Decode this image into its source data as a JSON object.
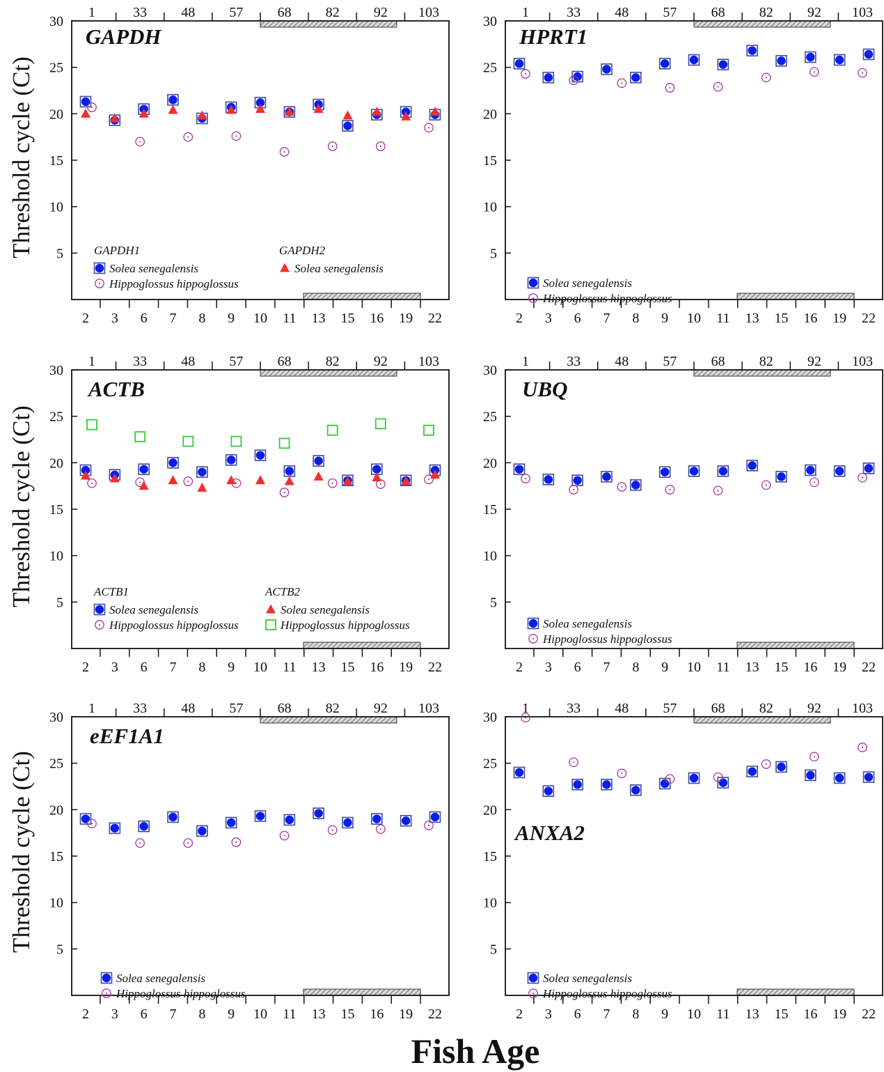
{
  "figure": {
    "xlabel": "Fish Age",
    "ylabel": "Threshold cycle (Ct)"
  },
  "colors": {
    "solea": "#0a1ee8",
    "solea_marker_box": "#3d4ba0",
    "hippoglossus": "#a8359c",
    "solea_gene2": "#f03030",
    "hippoglossus_gene2": "#33cc33"
  },
  "chart_data": [
    {
      "type": "scatter",
      "title": "GAPDH",
      "ylim": [
        0,
        30
      ],
      "yticks": [
        5,
        10,
        15,
        20,
        25,
        30
      ],
      "x_bottom": [
        "2",
        "3",
        "6",
        "7",
        "8",
        "9",
        "10",
        "11",
        "13",
        "15",
        "16",
        "19",
        "22"
      ],
      "x_top": [
        "1",
        "33",
        "48",
        "57",
        "68",
        "82",
        "92",
        "103"
      ],
      "legend_groups": [
        {
          "heading": "GAPDH1",
          "entries": [
            {
              "label": "Solea senegalensis",
              "series": 0
            },
            {
              "label": "Hippoglossus hippoglossus",
              "series": 1
            }
          ]
        },
        {
          "heading": "GAPDH2",
          "entries": [
            {
              "label": "Solea senegalensis",
              "series": 2
            }
          ]
        }
      ],
      "series": [
        {
          "marker": "filled-circle-box",
          "color_key": "solea",
          "axis": "bottom",
          "values": [
            21.3,
            19.3,
            20.5,
            21.5,
            19.5,
            20.7,
            21.2,
            20.2,
            21.0,
            18.7,
            19.9,
            20.2,
            19.9
          ]
        },
        {
          "marker": "dot-circle",
          "color_key": "hippoglossus",
          "axis": "top",
          "values": [
            20.7,
            17.0,
            17.5,
            17.6,
            15.9,
            16.5,
            16.5,
            18.5
          ]
        },
        {
          "marker": "triangle",
          "color_key": "solea_gene2",
          "axis": "bottom",
          "values": [
            20.0,
            19.5,
            20.0,
            20.4,
            19.8,
            20.4,
            20.5,
            20.2,
            20.5,
            19.8,
            20.2,
            19.7,
            20.2
          ]
        }
      ]
    },
    {
      "type": "scatter",
      "title": "HPRT1",
      "ylim": [
        0,
        30
      ],
      "yticks": [
        5,
        10,
        15,
        20,
        25,
        30
      ],
      "x_bottom": [
        "2",
        "3",
        "6",
        "7",
        "8",
        "9",
        "10",
        "11",
        "13",
        "15",
        "16",
        "19",
        "22"
      ],
      "x_top": [
        "1",
        "33",
        "48",
        "57",
        "68",
        "82",
        "92",
        "103"
      ],
      "legend_groups": [
        {
          "heading": "",
          "entries": [
            {
              "label": "Solea senegalensis",
              "series": 0
            },
            {
              "label": "Hippoglossus hippoglossus",
              "series": 1
            }
          ]
        }
      ],
      "series": [
        {
          "marker": "filled-circle-box",
          "color_key": "solea",
          "axis": "bottom",
          "values": [
            25.4,
            23.9,
            24.0,
            24.8,
            23.9,
            25.4,
            25.8,
            25.3,
            26.8,
            25.7,
            26.1,
            25.8,
            26.4
          ]
        },
        {
          "marker": "dot-circle",
          "color_key": "hippoglossus",
          "axis": "top",
          "values": [
            24.3,
            23.6,
            23.3,
            22.8,
            22.9,
            23.9,
            24.5,
            24.4
          ]
        }
      ]
    },
    {
      "type": "scatter",
      "title": "ACTB",
      "ylim": [
        0,
        30
      ],
      "yticks": [
        5,
        10,
        15,
        20,
        25,
        30
      ],
      "x_bottom": [
        "2",
        "3",
        "6",
        "7",
        "8",
        "9",
        "10",
        "11",
        "13",
        "15",
        "16",
        "19",
        "22"
      ],
      "x_top": [
        "1",
        "33",
        "48",
        "57",
        "68",
        "82",
        "92",
        "103"
      ],
      "legend_groups": [
        {
          "heading": "ACTB1",
          "entries": [
            {
              "label": "Solea senegalensis",
              "series": 0
            },
            {
              "label": "Hippoglossus hippoglossus",
              "series": 1
            }
          ]
        },
        {
          "heading": "ACTB2",
          "entries": [
            {
              "label": "Solea senegalensis",
              "series": 2
            },
            {
              "label": "Hippoglossus hippoglossus",
              "series": 3
            }
          ]
        }
      ],
      "series": [
        {
          "marker": "filled-circle-box",
          "color_key": "solea",
          "axis": "bottom",
          "values": [
            19.2,
            18.7,
            19.3,
            20.0,
            19.0,
            20.3,
            20.8,
            19.1,
            20.2,
            18.1,
            19.3,
            18.1,
            19.2
          ]
        },
        {
          "marker": "dot-circle",
          "color_key": "hippoglossus",
          "axis": "top",
          "values": [
            17.8,
            17.9,
            18.0,
            17.8,
            16.8,
            17.8,
            17.7,
            18.2
          ]
        },
        {
          "marker": "triangle",
          "color_key": "solea_gene2",
          "axis": "bottom",
          "values": [
            18.6,
            18.3,
            17.5,
            18.1,
            17.3,
            18.1,
            18.1,
            18.0,
            18.5,
            18.0,
            18.4,
            18.0,
            18.7
          ]
        },
        {
          "marker": "open-square",
          "color_key": "hippoglossus_gene2",
          "axis": "top",
          "values": [
            24.1,
            22.8,
            22.3,
            22.3,
            22.1,
            23.5,
            24.2,
            23.5
          ]
        }
      ]
    },
    {
      "type": "scatter",
      "title": "UBQ",
      "ylim": [
        0,
        30
      ],
      "yticks": [
        5,
        10,
        15,
        20,
        25,
        30
      ],
      "x_bottom": [
        "2",
        "3",
        "6",
        "7",
        "8",
        "9",
        "10",
        "11",
        "13",
        "15",
        "16",
        "19",
        "22"
      ],
      "x_top": [
        "1",
        "33",
        "48",
        "57",
        "68",
        "82",
        "92",
        "103"
      ],
      "legend_groups": [
        {
          "heading": "",
          "entries": [
            {
              "label": "Solea senegalensis",
              "series": 0
            },
            {
              "label": "Hippoglossus hippoglossus",
              "series": 1
            }
          ]
        }
      ],
      "series": [
        {
          "marker": "filled-circle-box",
          "color_key": "solea",
          "axis": "bottom",
          "values": [
            19.3,
            18.2,
            18.1,
            18.5,
            17.6,
            19.0,
            19.1,
            19.1,
            19.7,
            18.5,
            19.2,
            19.1,
            19.4
          ]
        },
        {
          "marker": "dot-circle",
          "color_key": "hippoglossus",
          "axis": "top",
          "values": [
            18.3,
            17.1,
            17.4,
            17.1,
            17.0,
            17.6,
            17.9,
            18.4
          ]
        }
      ]
    },
    {
      "type": "scatter",
      "title": "eEF1A1",
      "ylim": [
        0,
        30
      ],
      "yticks": [
        5,
        10,
        15,
        20,
        25,
        30
      ],
      "x_bottom": [
        "2",
        "3",
        "6",
        "7",
        "8",
        "9",
        "10",
        "11",
        "13",
        "15",
        "16",
        "19",
        "22"
      ],
      "x_top": [
        "1",
        "33",
        "48",
        "57",
        "68",
        "82",
        "92",
        "103"
      ],
      "legend_groups": [
        {
          "heading": "",
          "entries": [
            {
              "label": "Solea senegalensis",
              "series": 0
            },
            {
              "label": "Hippoglossus hippoglossus",
              "series": 1
            }
          ]
        }
      ],
      "series": [
        {
          "marker": "filled-circle-box",
          "color_key": "solea",
          "axis": "bottom",
          "values": [
            19.0,
            18.0,
            18.2,
            19.2,
            17.7,
            18.6,
            19.3,
            18.9,
            19.6,
            18.6,
            19.0,
            18.8,
            19.2
          ]
        },
        {
          "marker": "dot-circle",
          "color_key": "hippoglossus",
          "axis": "top",
          "values": [
            18.5,
            16.4,
            16.4,
            16.5,
            17.2,
            17.8,
            17.9,
            18.3
          ]
        }
      ]
    },
    {
      "type": "scatter",
      "title": "ANXA2",
      "ylim": [
        0,
        30
      ],
      "yticks": [
        5,
        10,
        15,
        20,
        25,
        30
      ],
      "x_bottom": [
        "2",
        "3",
        "6",
        "7",
        "8",
        "9",
        "10",
        "11",
        "13",
        "15",
        "16",
        "19",
        "22"
      ],
      "x_top": [
        "1",
        "33",
        "48",
        "57",
        "68",
        "82",
        "92",
        "103"
      ],
      "legend_groups": [
        {
          "heading": "",
          "entries": [
            {
              "label": "Solea senegalensis",
              "series": 0
            },
            {
              "label": "Hippoglossus hippoglossus",
              "series": 1
            }
          ]
        }
      ],
      "series": [
        {
          "marker": "filled-circle-box",
          "color_key": "solea",
          "axis": "bottom",
          "values": [
            24.0,
            22.0,
            22.7,
            22.7,
            22.1,
            22.8,
            23.4,
            22.9,
            24.1,
            24.6,
            23.7,
            23.4,
            23.5
          ]
        },
        {
          "marker": "dot-circle",
          "color_key": "hippoglossus",
          "axis": "top",
          "values": [
            29.9,
            25.1,
            23.9,
            23.3,
            23.5,
            24.9,
            25.7,
            26.7
          ]
        }
      ]
    }
  ]
}
